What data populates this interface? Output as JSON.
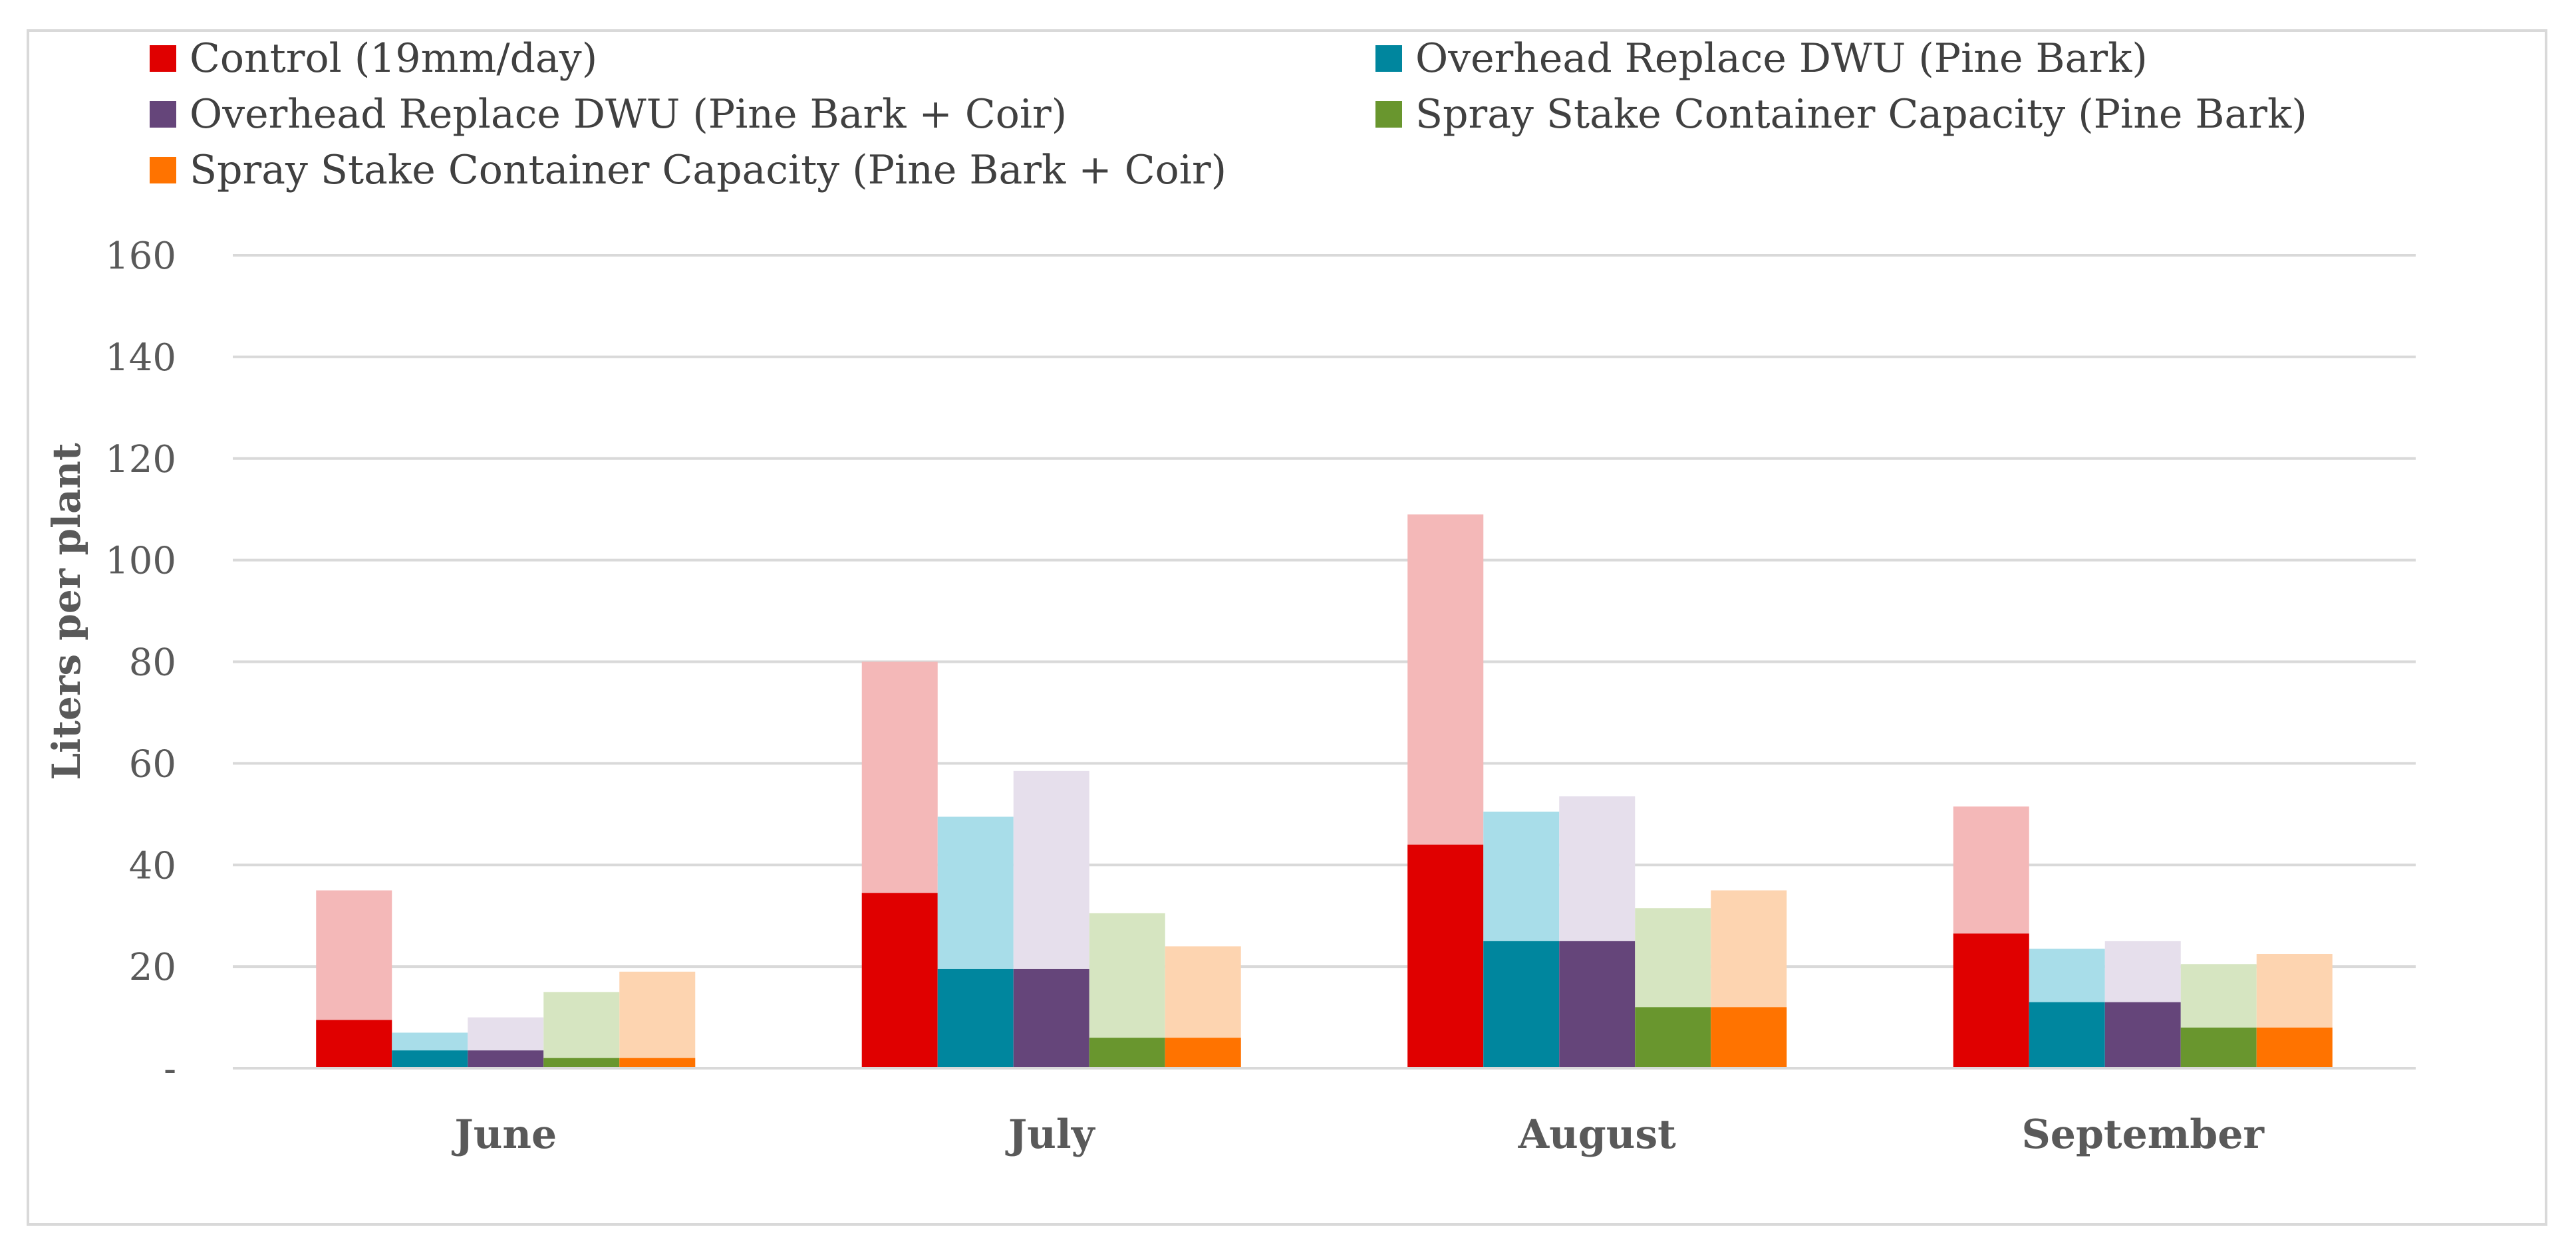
{
  "chart_data": {
    "type": "bar",
    "title": "",
    "xlabel": "",
    "ylabel": "Liters per plant",
    "ylim": [
      0,
      160
    ],
    "yticks": [
      0,
      20,
      40,
      60,
      80,
      100,
      120,
      140,
      160
    ],
    "ytick_labels": [
      "-",
      "20",
      "40",
      "60",
      "80",
      "100",
      "120",
      "140",
      "160"
    ],
    "grid": true,
    "legend_position": "top",
    "categories": [
      "June",
      "July",
      "August",
      "September"
    ],
    "series": [
      {
        "name": "Control (19mm/day)",
        "color": "#E00000",
        "light_color": "#F4B8B8",
        "values": [
          9.5,
          34.5,
          44,
          26.5
        ],
        "totals": [
          35,
          80,
          109,
          51.5
        ]
      },
      {
        "name": "Overhead Replace DWU (Pine Bark)",
        "color": "#00869E",
        "light_color": "#A8DDE9",
        "values": [
          3.5,
          19.5,
          25,
          13
        ],
        "totals": [
          7,
          49.5,
          50.5,
          23.5
        ]
      },
      {
        "name": "Overhead Replace DWU (Pine Bark + Coir)",
        "color": "#65457A",
        "light_color": "#E6DFEC",
        "values": [
          3.5,
          19.5,
          25,
          13
        ],
        "totals": [
          10,
          58.5,
          53.5,
          25
        ]
      },
      {
        "name": "Spray Stake Container Capacity (Pine Bark)",
        "color": "#69962E",
        "light_color": "#D6E5C1",
        "values": [
          2,
          6,
          12,
          8
        ],
        "totals": [
          15,
          30.5,
          31.5,
          20.5
        ]
      },
      {
        "name": "Spray Stake Container Capacity (Pine Bark + Coir)",
        "color": "#FF7300",
        "light_color": "#FDD4B0",
        "values": [
          2,
          6,
          12,
          8
        ],
        "totals": [
          19,
          24,
          35,
          22.5
        ]
      }
    ]
  }
}
